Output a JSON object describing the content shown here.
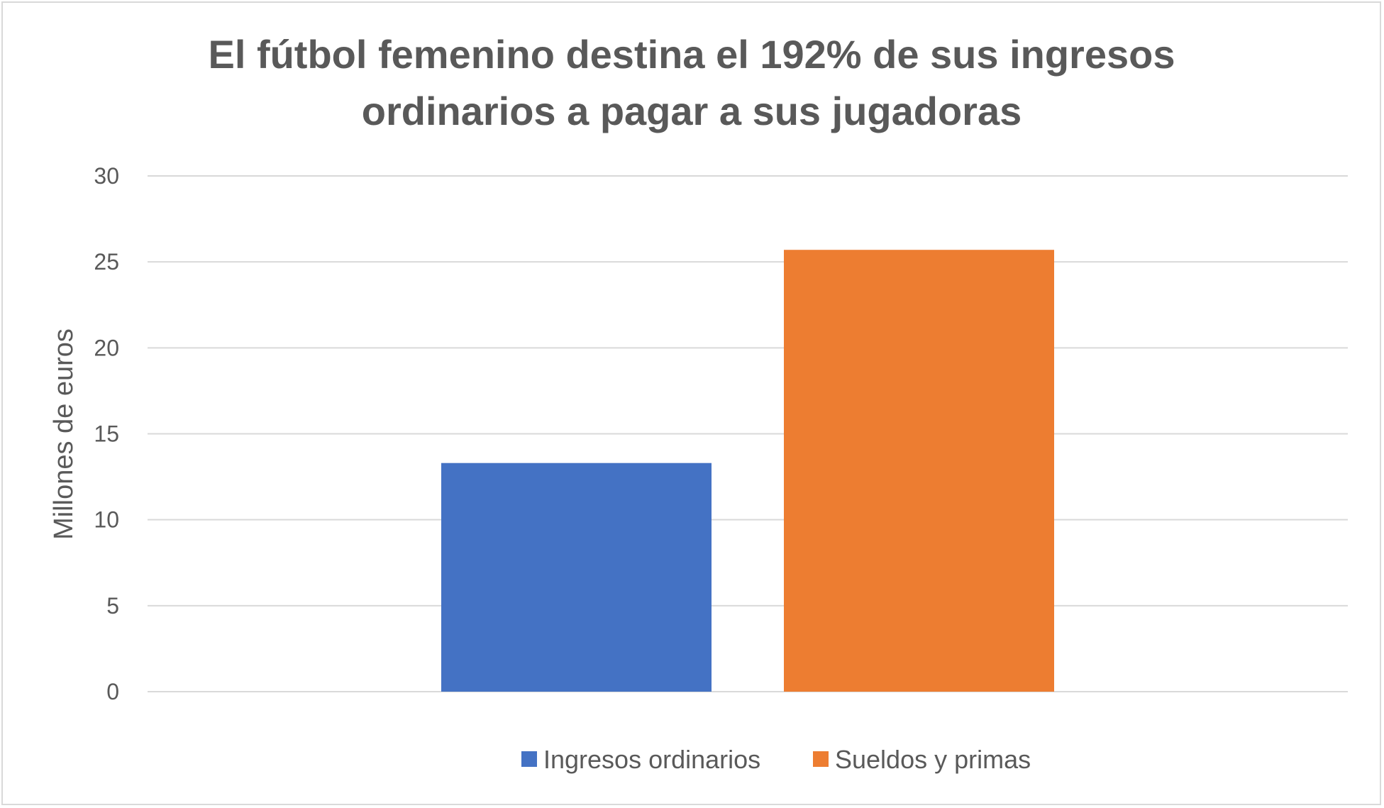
{
  "chart_data": {
    "type": "bar",
    "title_lines": [
      "El fútbol femenino destina el 192% de sus ingresos",
      "ordinarios a pagar a sus jugadoras"
    ],
    "xlabel": "",
    "ylabel": "Millones de euros",
    "ylim": [
      0,
      30
    ],
    "yticks": [
      0,
      5,
      10,
      15,
      20,
      25,
      30
    ],
    "grid": true,
    "legend_position": "bottom",
    "series": [
      {
        "name": "Ingresos ordinarios",
        "value": 13.3,
        "color": "#4472C4"
      },
      {
        "name": "Sueldos y primas",
        "value": 25.7,
        "color": "#ED7D31"
      }
    ]
  }
}
